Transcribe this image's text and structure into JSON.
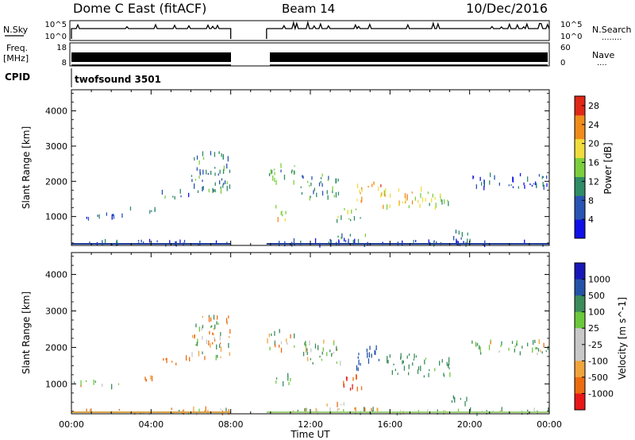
{
  "header": {
    "station": "Dome C East (fitACF)",
    "beam": "Beam 14",
    "date": "10/Dec/2016"
  },
  "top_panels": {
    "nsky": {
      "label": "N.Sky",
      "left_ticks": [
        "10^5",
        "10^0"
      ],
      "right_ticks": [
        "10^5",
        "10^0"
      ],
      "right_label": "N.Search",
      "right_marker": "........"
    },
    "freq": {
      "label_line1": "Freq.",
      "label_line2": "[MHz]",
      "left_ticks": [
        "18",
        "8"
      ],
      "right_ticks": [
        "60",
        "0"
      ],
      "right_label": "Nave",
      "right_marker": "...."
    },
    "cpid": {
      "label": "CPID",
      "value": "twofsound 3501"
    }
  },
  "chart_data": [
    {
      "type": "heatmap",
      "panel": "power",
      "xlabel": "Time UT",
      "ylabel": "Slant Range [km]",
      "x_ticks": [
        "00:00",
        "04:00",
        "08:00",
        "12:00",
        "16:00",
        "20:00",
        "00:00"
      ],
      "xlim_hours": [
        0,
        24
      ],
      "y_ticks": [
        1000,
        2000,
        3000,
        4000
      ],
      "ylim_km": [
        180,
        4600
      ],
      "colorbar_label": "Power [dB]",
      "colorbar_ticks": [
        4,
        8,
        12,
        16,
        20,
        24,
        28
      ],
      "colorbar_range": [
        0,
        30
      ],
      "data_gap_hours": [
        8.0,
        9.8
      ],
      "colors": [
        "#1010e8",
        "#2854b4",
        "#2f8c66",
        "#7ccf3c",
        "#f0dc3c",
        "#f08c1c",
        "#e02818"
      ],
      "regions": [
        {
          "t": [
            0.0,
            8.0
          ],
          "r": [
            180,
            320
          ],
          "v": 5
        },
        {
          "t": [
            9.8,
            24.0
          ],
          "r": [
            180,
            320
          ],
          "v": 6
        },
        {
          "t": [
            0.0,
            2.6
          ],
          "r": [
            920,
            1080
          ],
          "v": 7
        },
        {
          "t": [
            2.8,
            4.2
          ],
          "r": [
            1080,
            1230
          ],
          "v": 8
        },
        {
          "t": [
            4.5,
            6.0
          ],
          "r": [
            1520,
            1720
          ],
          "v": 8
        },
        {
          "t": [
            6.0,
            8.0
          ],
          "r": [
            1700,
            2900
          ],
          "v": 10
        },
        {
          "t": [
            9.8,
            11.2
          ],
          "r": [
            1900,
            2450
          ],
          "v": 12
        },
        {
          "t": [
            11.5,
            13.5
          ],
          "r": [
            1500,
            2200
          ],
          "v": 10
        },
        {
          "t": [
            13.3,
            14.6
          ],
          "r": [
            850,
            1250
          ],
          "v": 14
        },
        {
          "t": [
            14.3,
            15.6
          ],
          "r": [
            1400,
            2000
          ],
          "v": 22
        },
        {
          "t": [
            15.6,
            17.6
          ],
          "r": [
            1250,
            1800
          ],
          "v": 20
        },
        {
          "t": [
            17.6,
            19.0
          ],
          "r": [
            1200,
            1700
          ],
          "v": 16
        },
        {
          "t": [
            12.8,
            14.8
          ],
          "r": [
            250,
            480
          ],
          "v": 9
        },
        {
          "t": [
            19.0,
            20.0
          ],
          "r": [
            350,
            650
          ],
          "v": 8
        },
        {
          "t": [
            20.0,
            24.0
          ],
          "r": [
            1800,
            2200
          ],
          "v": 6
        },
        {
          "t": [
            10.2,
            11.0
          ],
          "r": [
            900,
            1300
          ],
          "v": 18
        }
      ]
    },
    {
      "type": "heatmap",
      "panel": "velocity",
      "xlabel": "Time UT",
      "ylabel": "Slant Range [km]",
      "x_ticks": [
        "00:00",
        "04:00",
        "08:00",
        "12:00",
        "16:00",
        "20:00",
        "00:00"
      ],
      "xlim_hours": [
        0,
        24
      ],
      "y_ticks": [
        1000,
        2000,
        3000,
        4000
      ],
      "ylim_km": [
        180,
        4600
      ],
      "colorbar_label": "Velocity [m s^-1]",
      "colorbar_ticks": [
        "1000",
        "500",
        "100",
        "25",
        "-25",
        "-100",
        "-500",
        "-1000"
      ],
      "colorbar_range": [
        -1200,
        1200
      ],
      "data_gap_hours": [
        8.0,
        9.8
      ],
      "colors": [
        "#e81818",
        "#ec6c10",
        "#f0a43c",
        "#c8c8c8",
        "#c8c8c8",
        "#6cc83c",
        "#3c8c5c",
        "#2454a8",
        "#1818b8"
      ],
      "regions": [
        {
          "t": [
            0.0,
            8.0
          ],
          "r": [
            180,
            320
          ],
          "v": -80
        },
        {
          "t": [
            9.8,
            24.0
          ],
          "r": [
            180,
            320
          ],
          "v": 60
        },
        {
          "t": [
            0.0,
            2.6
          ],
          "r": [
            920,
            1080
          ],
          "v": 0
        },
        {
          "t": [
            2.8,
            4.2
          ],
          "r": [
            1080,
            1230
          ],
          "v": -150
        },
        {
          "t": [
            4.5,
            6.0
          ],
          "r": [
            1520,
            1720
          ],
          "v": -300
        },
        {
          "t": [
            6.0,
            8.0
          ],
          "r": [
            1700,
            2900
          ],
          "v": 0
        },
        {
          "t": [
            9.8,
            11.2
          ],
          "r": [
            1900,
            2450
          ],
          "v": 0
        },
        {
          "t": [
            11.5,
            13.5
          ],
          "r": [
            1500,
            2200
          ],
          "v": 150
        },
        {
          "t": [
            13.3,
            14.6
          ],
          "r": [
            850,
            1250
          ],
          "v": -450
        },
        {
          "t": [
            14.3,
            15.6
          ],
          "r": [
            1400,
            2000
          ],
          "v": 700
        },
        {
          "t": [
            15.6,
            17.6
          ],
          "r": [
            1250,
            1800
          ],
          "v": 300
        },
        {
          "t": [
            17.6,
            19.0
          ],
          "r": [
            1200,
            1700
          ],
          "v": 200
        },
        {
          "t": [
            12.8,
            14.8
          ],
          "r": [
            250,
            480
          ],
          "v": -200
        },
        {
          "t": [
            19.0,
            20.0
          ],
          "r": [
            350,
            650
          ],
          "v": 250
        },
        {
          "t": [
            20.0,
            24.0
          ],
          "r": [
            1800,
            2200
          ],
          "v": 60
        },
        {
          "t": [
            10.2,
            11.0
          ],
          "r": [
            900,
            1300
          ],
          "v": 150
        }
      ]
    }
  ]
}
